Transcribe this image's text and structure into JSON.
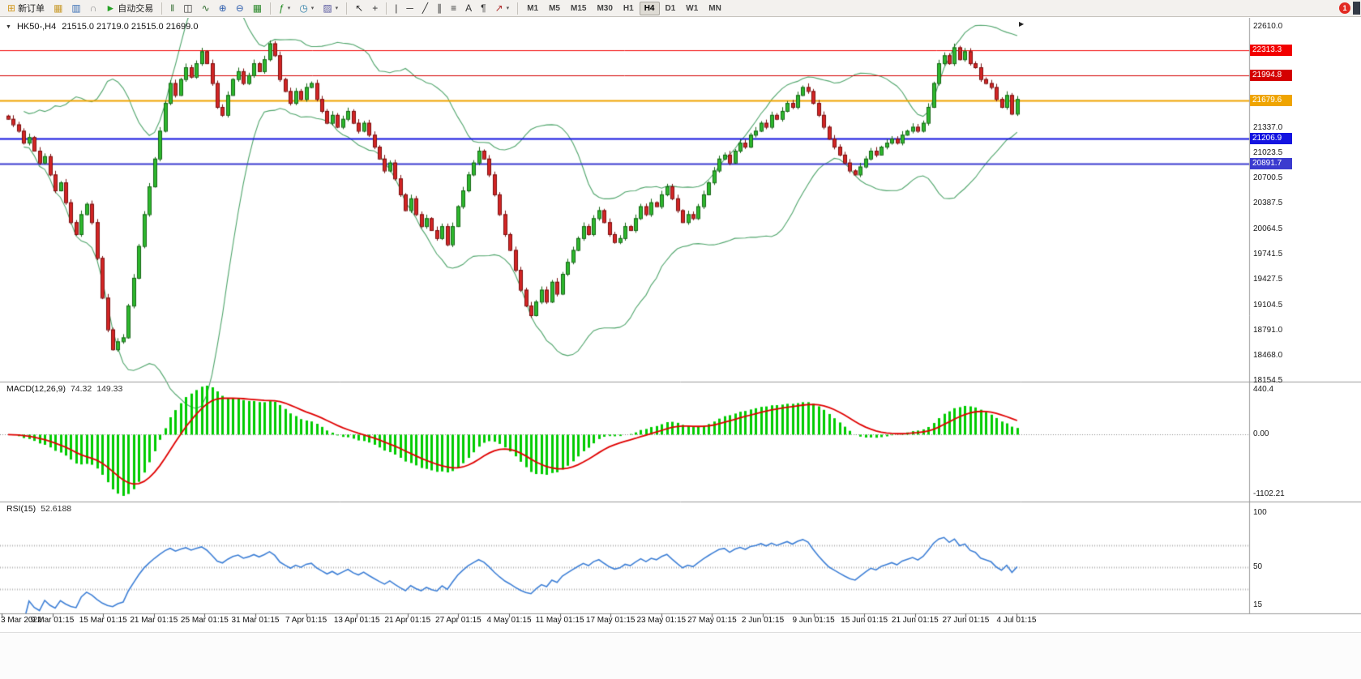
{
  "toolbar": {
    "notification_count": "1",
    "items": [
      {
        "name": "new-order",
        "glyph": "⊞",
        "color": "#d29a22",
        "label": "新订单"
      },
      {
        "name": "chart-profiles",
        "glyph": "▦",
        "color": "#c99b2c"
      },
      {
        "name": "market-watch",
        "glyph": "▥",
        "color": "#3a6fb5"
      },
      {
        "name": "headset",
        "glyph": "∩",
        "color": "#8a8a8a"
      },
      {
        "name": "auto-trading",
        "glyph": "►",
        "color": "#25a125",
        "label": "自动交易"
      },
      {
        "type": "sep"
      },
      {
        "name": "bars-mode",
        "glyph": "‖",
        "color": "#2f6b2f"
      },
      {
        "name": "candles-mode",
        "glyph": "◫",
        "color": "#333333"
      },
      {
        "name": "line-mode",
        "glyph": "∿",
        "color": "#2f6b2f"
      },
      {
        "name": "zoom-in",
        "glyph": "⊕",
        "color": "#2f5fae"
      },
      {
        "name": "zoom-out",
        "glyph": "⊖",
        "color": "#2f5fae"
      },
      {
        "name": "tile-windows",
        "glyph": "▦",
        "color": "#2d8a2d"
      },
      {
        "type": "sep"
      },
      {
        "name": "indicators",
        "glyph": "ƒ",
        "color": "#1f8a1f",
        "caret": true
      },
      {
        "name": "periods",
        "glyph": "◷",
        "color": "#2d7fa8",
        "caret": true
      },
      {
        "name": "templates",
        "glyph": "▨",
        "color": "#5a5aa0",
        "caret": true
      },
      {
        "type": "sep"
      },
      {
        "name": "cursor",
        "glyph": "↖",
        "color": "#333333"
      },
      {
        "name": "crosshair",
        "glyph": "+",
        "color": "#333333"
      },
      {
        "type": "sep"
      },
      {
        "name": "vertical-line",
        "glyph": "|",
        "color": "#333333"
      },
      {
        "name": "horizontal-line",
        "glyph": "─",
        "color": "#333333"
      },
      {
        "name": "trendline",
        "glyph": "╱",
        "color": "#333333"
      },
      {
        "name": "equidistant-channel",
        "glyph": "∥",
        "color": "#333333"
      },
      {
        "name": "fibonacci",
        "glyph": "≡",
        "color": "#333333"
      },
      {
        "name": "text",
        "glyph": "A",
        "color": "#333333"
      },
      {
        "name": "text-label",
        "glyph": "¶",
        "color": "#333333"
      },
      {
        "name": "arrow-shapes",
        "glyph": "↗",
        "color": "#b03030",
        "caret": true
      },
      {
        "type": "sep"
      },
      {
        "type": "tf",
        "name": "tf-m1",
        "label": "M1"
      },
      {
        "type": "tf",
        "name": "tf-m5",
        "label": "M5"
      },
      {
        "type": "tf",
        "name": "tf-m15",
        "label": "M15"
      },
      {
        "type": "tf",
        "name": "tf-m30",
        "label": "M30"
      },
      {
        "type": "tf",
        "name": "tf-h1",
        "label": "H1"
      },
      {
        "type": "tf",
        "name": "tf-h4",
        "label": "H4",
        "active": true
      },
      {
        "type": "tf",
        "name": "tf-d1",
        "label": "D1"
      },
      {
        "type": "tf",
        "name": "tf-w1",
        "label": "W1"
      },
      {
        "type": "tf",
        "name": "tf-mn",
        "label": "MN"
      }
    ]
  },
  "chart": {
    "collapse_glyph": "▼",
    "title": "HK50-,H4",
    "ohlc_text": "21515.0 21719.0 21515.0 21699.0",
    "shift_marker": "▶"
  },
  "price_axis": {
    "labels": [
      22610.0,
      21337.0,
      21023.5,
      20700.5,
      20387.5,
      20064.5,
      19741.5,
      19427.5,
      19104.5,
      18791.0,
      18468.0,
      18154.5
    ]
  },
  "levels": [
    {
      "value": "22313.3",
      "price": 22313.3,
      "color": "#f20000",
      "width": 1
    },
    {
      "value": "21994.8",
      "price": 21994.8,
      "color": "#d40000",
      "width": 1
    },
    {
      "value": "21679.6",
      "price": 21679.6,
      "color": "#efa400",
      "width": 2
    },
    {
      "value": "21206.9",
      "price": 21206.9,
      "color": "#1414e0",
      "width": 2
    },
    {
      "value": "20891.7",
      "price": 20891.7,
      "color": "#3b3bcf",
      "width": 2
    }
  ],
  "macd": {
    "name": "MACD(12,26,9)",
    "value_main": "74.32",
    "value_signal": "149.33",
    "axis_high": "440.4",
    "axis_zero": "0.00",
    "axis_low": "-1102.21"
  },
  "rsi": {
    "name": "RSI(15)",
    "value": "52.6188",
    "axis": [
      "100",
      "50",
      "15"
    ],
    "levels": [
      70,
      50,
      30
    ]
  },
  "time_axis": {
    "labels": [
      "3 Mar 2022",
      "9 Mar 01:15",
      "15 Mar 01:15",
      "21 Mar 01:15",
      "25 Mar 01:15",
      "31 Mar 01:15",
      "7 Apr 01:15",
      "13 Apr 01:15",
      "21 Apr 01:15",
      "27 Apr 01:15",
      "4 May 01:15",
      "11 May 01:15",
      "17 May 01:15",
      "23 May 01:15",
      "27 May 01:15",
      "2 Jun 01:15",
      "9 Jun 01:15",
      "15 Jun 01:15",
      "21 Jun 01:15",
      "27 Jun 01:15",
      "4 Jul 01:15"
    ]
  },
  "colors": {
    "bull": "#2eb82e",
    "bull_border": "#156615",
    "bear": "#d42525",
    "bear_border": "#7a1010",
    "bollinger": "#4fa56b",
    "macd_histogram": "#00cc00",
    "macd_signal": "#e00000",
    "rsi_line": "#3d7fd6",
    "grid": "#b4b4b4",
    "separator": "#9a9a9a"
  },
  "chart_data": {
    "type": "candlestick",
    "symbol": "HK50-",
    "timeframe": "H4",
    "current_bar": {
      "open": 21515.0,
      "high": 21719.0,
      "low": 21515.0,
      "close": 21699.0
    },
    "price_range": [
      18144,
      22722
    ],
    "indicators": {
      "bollinger_period": 20,
      "bollinger_deviation": 2,
      "macd": [
        12,
        26,
        9
      ],
      "rsi_period": 15
    },
    "closes": [
      21450,
      21380,
      21300,
      21150,
      21220,
      21050,
      20900,
      20980,
      20750,
      20550,
      20650,
      20400,
      20150,
      20000,
      20250,
      20380,
      20150,
      19700,
      19200,
      18800,
      18550,
      18650,
      18700,
      19100,
      19450,
      19850,
      20250,
      20600,
      20950,
      21300,
      21650,
      21900,
      21750,
      21950,
      22100,
      21980,
      22150,
      22300,
      22150,
      21900,
      21600,
      21500,
      21750,
      21950,
      22050,
      21900,
      22000,
      22150,
      22050,
      22200,
      22400,
      22250,
      21950,
      21800,
      21650,
      21800,
      21700,
      21850,
      21900,
      21700,
      21550,
      21400,
      21500,
      21350,
      21450,
      21550,
      21400,
      21300,
      21400,
      21250,
      21100,
      20950,
      20800,
      20900,
      20700,
      20500,
      20300,
      20450,
      20250,
      20100,
      20200,
      20050,
      19950,
      20100,
      19870,
      20100,
      20350,
      20550,
      20750,
      20900,
      21050,
      20950,
      20750,
      20500,
      20250,
      20000,
      19800,
      19550,
      19300,
      19100,
      18980,
      19150,
      19300,
      19150,
      19400,
      19250,
      19500,
      19650,
      19800,
      19950,
      20100,
      20000,
      20200,
      20300,
      20150,
      20000,
      19900,
      19950,
      20100,
      20050,
      20200,
      20350,
      20250,
      20400,
      20350,
      20500,
      20600,
      20450,
      20300,
      20150,
      20250,
      20200,
      20350,
      20500,
      20650,
      20800,
      20950,
      21000,
      20900,
      21050,
      21150,
      21100,
      21250,
      21300,
      21400,
      21350,
      21500,
      21450,
      21550,
      21650,
      21600,
      21750,
      21850,
      21800,
      21650,
      21500,
      21350,
      21200,
      21100,
      21000,
      20900,
      20800,
      20750,
      20850,
      20950,
      21050,
      21000,
      21100,
      21150,
      21200,
      21150,
      21250,
      21300,
      21350,
      21300,
      21400,
      21600,
      21900,
      22150,
      22250,
      22150,
      22350,
      22200,
      22300,
      22150,
      22100,
      21950,
      21900,
      21850,
      21700,
      21600,
      21750,
      21515,
      21699
    ]
  }
}
